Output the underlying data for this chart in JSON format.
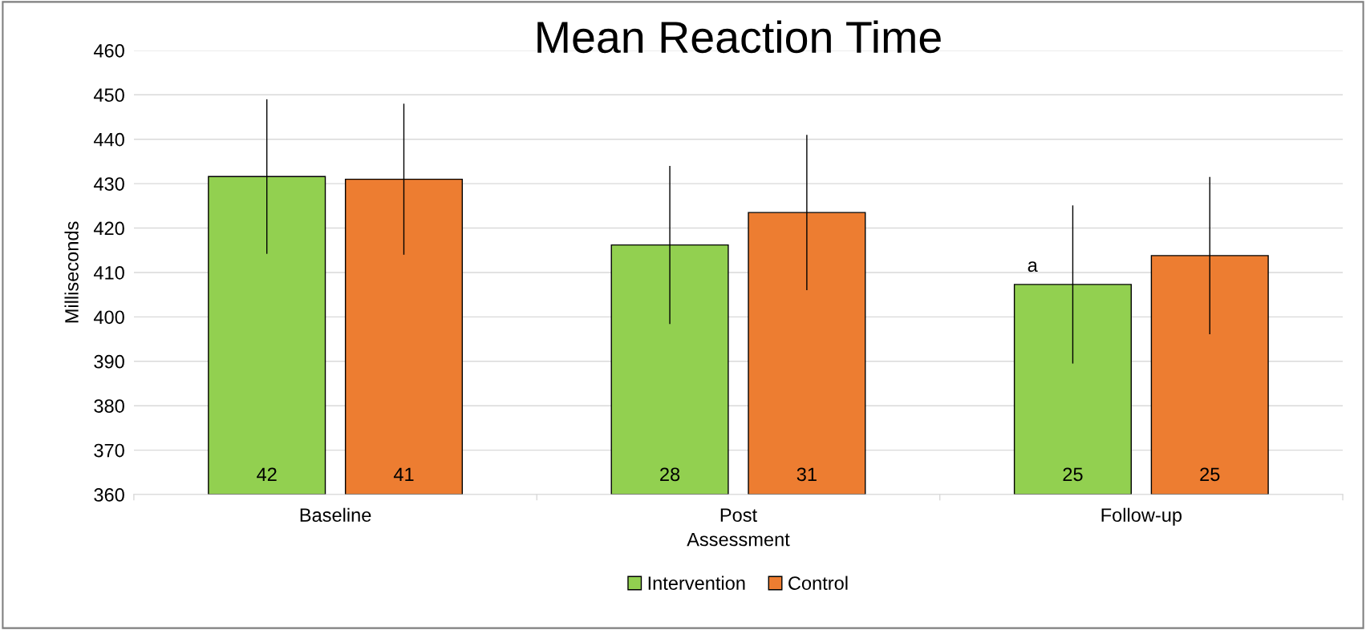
{
  "chart_data": {
    "type": "bar",
    "title": "Mean Reaction Time",
    "xlabel": "Assessment",
    "ylabel": "Milliseconds",
    "categories": [
      "Baseline",
      "Post",
      "Follow-up"
    ],
    "series": [
      {
        "name": "Intervention",
        "color": "#92d050",
        "values": [
          431.6,
          416.2,
          407.3
        ],
        "errors": [
          17.4,
          17.8,
          17.8
        ]
      },
      {
        "name": "Control",
        "color": "#ed7d31",
        "values": [
          431.0,
          423.5,
          413.8
        ],
        "errors": [
          17.0,
          17.5,
          17.7
        ]
      }
    ],
    "ylim": [
      360,
      460
    ],
    "yticks": [
      360,
      370,
      380,
      390,
      400,
      410,
      420,
      430,
      440,
      450,
      460
    ],
    "grid": "y",
    "legend": "bottom",
    "annotations": [
      "42",
      "28",
      "25",
      "41",
      "31",
      "25",
      "a"
    ]
  }
}
